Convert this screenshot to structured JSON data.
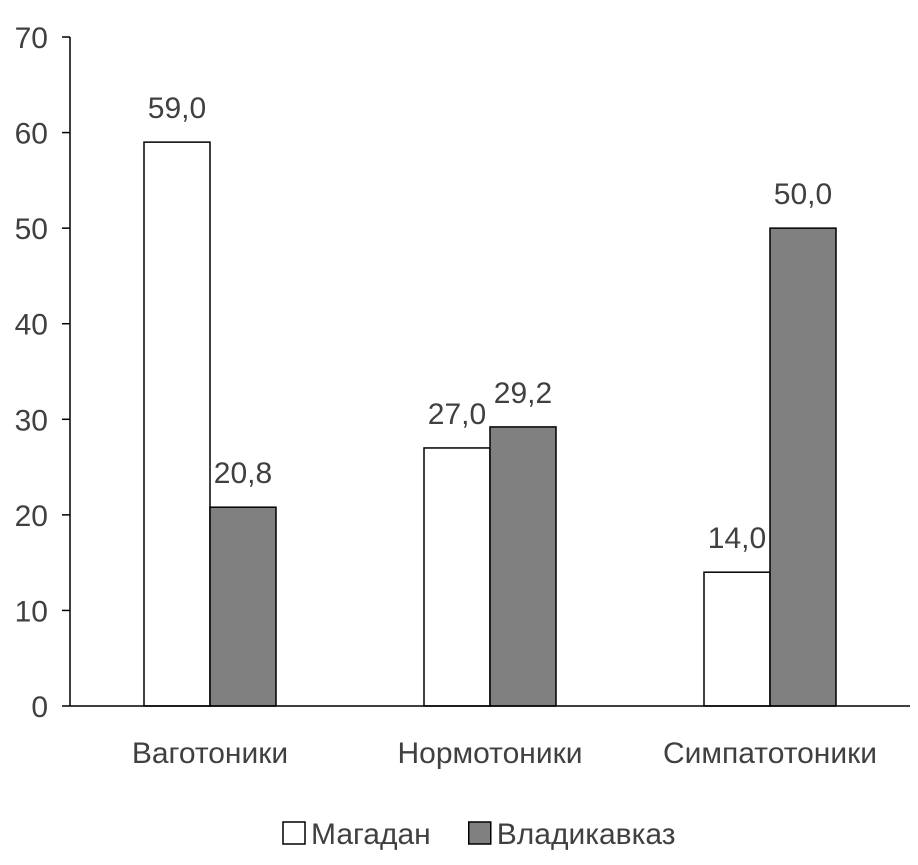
{
  "chart_data": {
    "type": "bar",
    "categories": [
      "Ваготоники",
      "Нормотоники",
      "Симпатотоники"
    ],
    "series": [
      {
        "name": "Магадан",
        "values": [
          59.0,
          27.0,
          14.0
        ],
        "labels": [
          "59,0",
          "27,0",
          "14,0"
        ],
        "color": "#ffffff"
      },
      {
        "name": "Владикавказ",
        "values": [
          20.8,
          29.2,
          50.0
        ],
        "labels": [
          "20,8",
          "29,2",
          "50,0"
        ],
        "color": "#808080"
      }
    ],
    "ylim": [
      0,
      70
    ],
    "yticks": [
      0,
      10,
      20,
      30,
      40,
      50,
      60,
      70
    ],
    "legend_position": "bottom",
    "grid": false,
    "title": "",
    "xlabel": "",
    "ylabel": ""
  }
}
